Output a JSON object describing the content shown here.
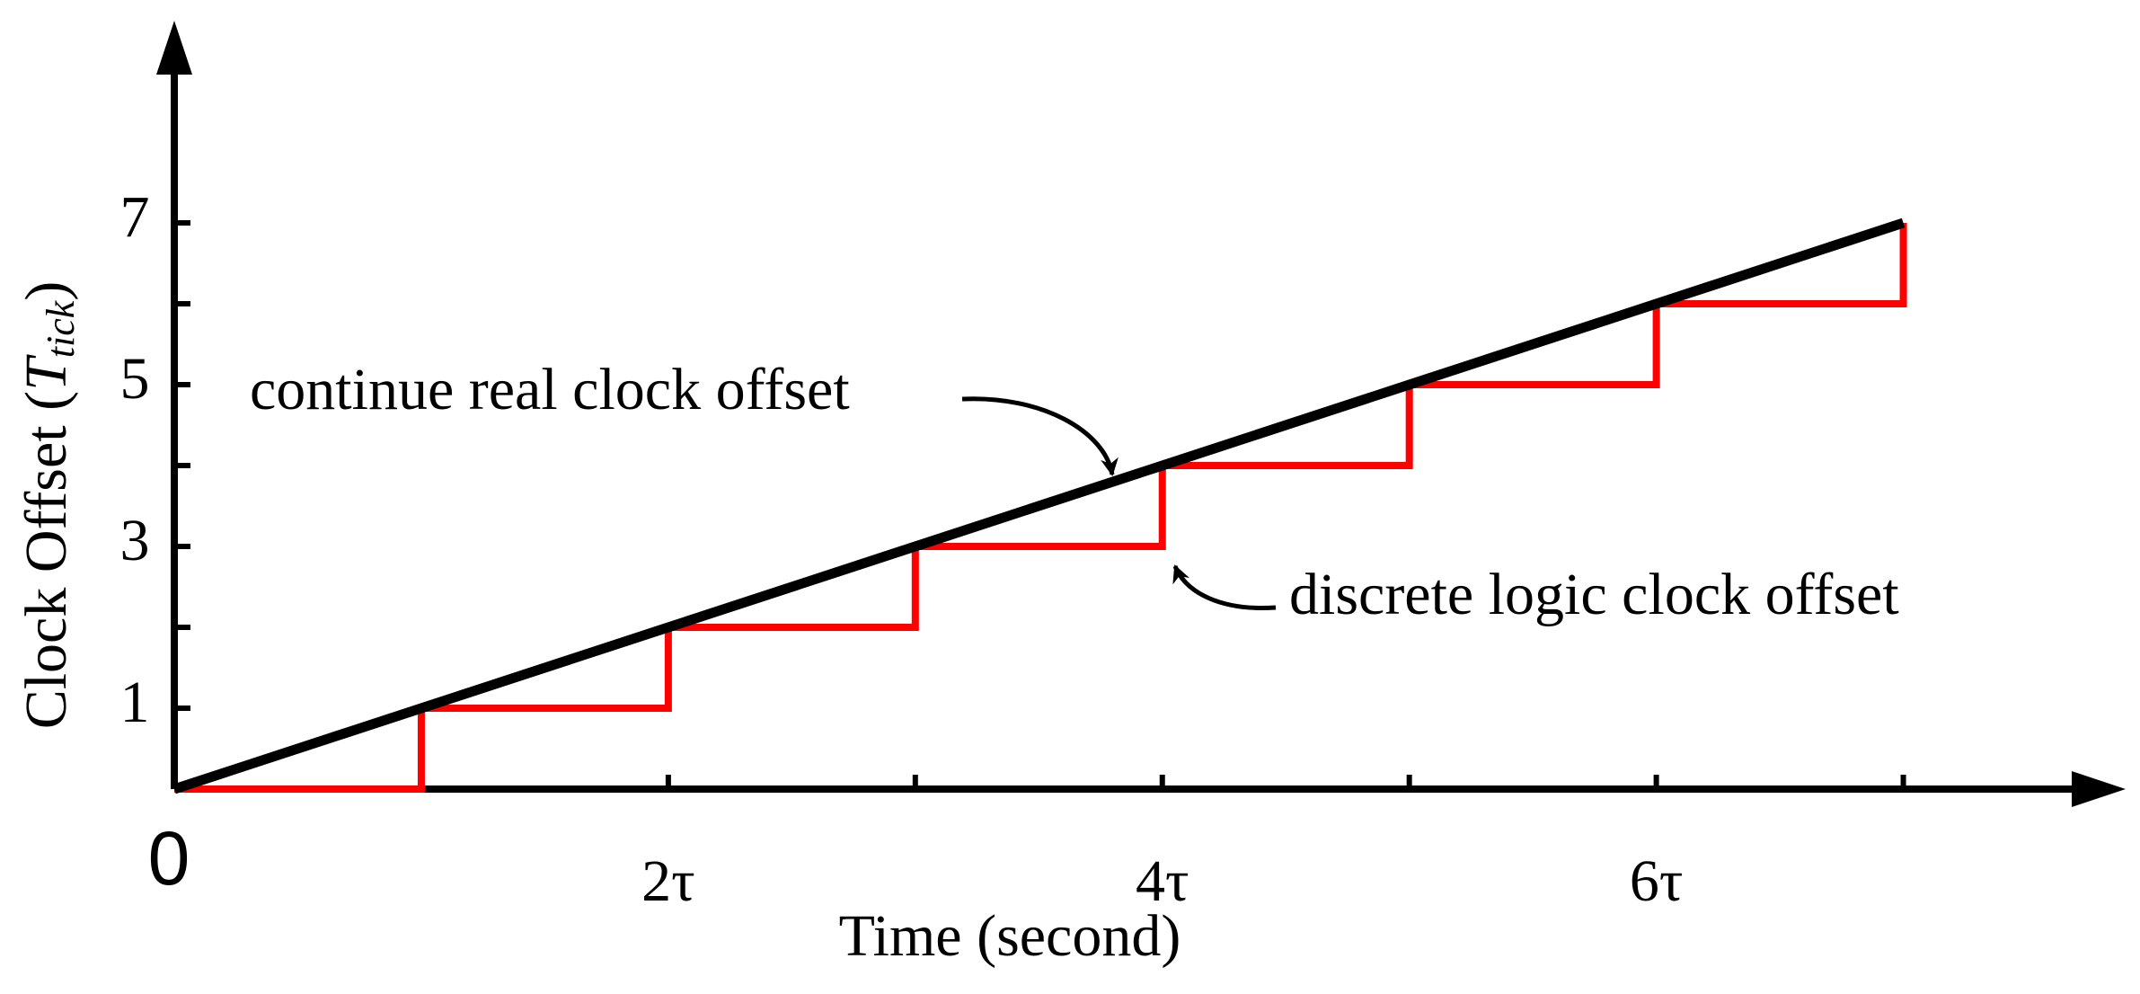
{
  "chart_data": {
    "type": "line",
    "xlabel": "Time (second)",
    "ylabel": "Clock Offset (",
    "ylabel_var": "T",
    "ylabel_sub": "tick",
    "ylabel_close": ")",
    "x": [
      0,
      1,
      2,
      3,
      4,
      5,
      6,
      7
    ],
    "series": [
      {
        "name": "continue real clock offset",
        "color": "#000000",
        "style": "straight",
        "values": [
          0,
          1,
          2,
          3,
          4,
          5,
          6,
          7
        ]
      },
      {
        "name": "discrete logic clock offset",
        "color": "#ff0000",
        "style": "step",
        "values": [
          0,
          1,
          2,
          3,
          4,
          5,
          6,
          7
        ]
      }
    ],
    "xlim": [
      0,
      7.9
    ],
    "ylim": [
      0,
      9.5
    ],
    "xticks": [
      0,
      {
        "value": 2,
        "label": "2τ"
      },
      {
        "value": 4,
        "label": "4τ"
      },
      {
        "value": 6,
        "label": "6τ"
      }
    ],
    "xminorticks": [
      1,
      3,
      5,
      7
    ],
    "yticks": [
      1,
      3,
      5,
      7
    ],
    "yminorticks": [
      2,
      4,
      6
    ],
    "grid": false
  }
}
